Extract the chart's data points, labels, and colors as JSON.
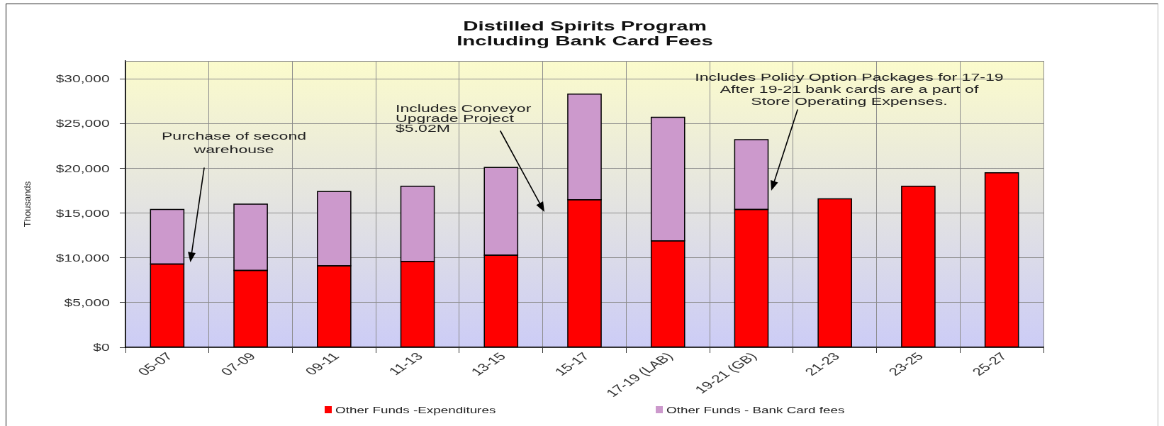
{
  "chart_data": {
    "type": "bar",
    "title": "Distilled Spirits Program",
    "subtitle": "Including Bank Card Fees",
    "ylabel": "Thousands",
    "categories": [
      "05-07",
      "07-09",
      "09-11",
      "11-13",
      "13-15",
      "15-17",
      "17-19 (LAB)",
      "19-21 (GB)",
      "21-23",
      "23-25",
      "25-27"
    ],
    "series": [
      {
        "name": "Other Funds -Expenditures",
        "color": "#ff0000",
        "values": [
          9300,
          8600,
          9100,
          9600,
          10300,
          16500,
          11900,
          15400,
          16600,
          18000,
          19500
        ]
      },
      {
        "name": "Other Funds - Bank Card fees",
        "color": "#cc99cc",
        "values": [
          6100,
          7400,
          8300,
          8400,
          9800,
          11800,
          13800,
          7800,
          null,
          null,
          null
        ]
      }
    ],
    "stacked": true,
    "ylim": [
      0,
      32000
    ],
    "yticks": [
      {
        "value": 0,
        "label": "$0"
      },
      {
        "value": 5000,
        "label": "$5,000"
      },
      {
        "value": 10000,
        "label": "$10,000"
      },
      {
        "value": 15000,
        "label": "$15,000"
      },
      {
        "value": 20000,
        "label": "$20,000"
      },
      {
        "value": 25000,
        "label": "$25,000"
      },
      {
        "value": 30000,
        "label": "$30,000"
      }
    ],
    "grid": true,
    "legend": "bottom",
    "annotations": [
      "Purchase of second\nwarehouse",
      "Includes Conveyor\nUpgrade Project\n$5.02M",
      "Includes Policy Option Packages for 17-19\nAfter 19-21 bank cards are a part of\nStore Operating Expenses."
    ]
  }
}
